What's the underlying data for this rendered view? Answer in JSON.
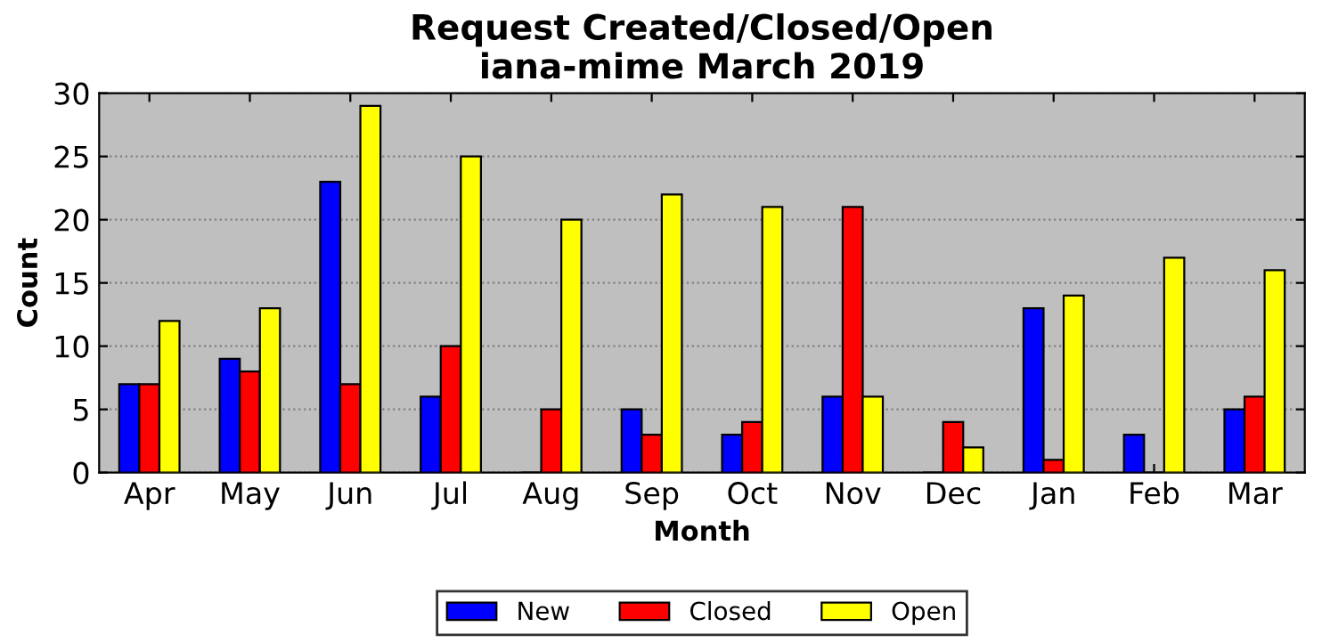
{
  "chart_data": {
    "type": "bar",
    "title": "Request Created/Closed/Open\niana-mime March 2019",
    "xlabel": "Month",
    "ylabel": "Count",
    "categories": [
      "Apr",
      "May",
      "Jun",
      "Jul",
      "Aug",
      "Sep",
      "Oct",
      "Nov",
      "Dec",
      "Jan",
      "Feb",
      "Mar"
    ],
    "series": [
      {
        "name": "New",
        "color": "#0000ff",
        "values": [
          7,
          9,
          23,
          6,
          0,
          5,
          3,
          6,
          0,
          13,
          3,
          5
        ]
      },
      {
        "name": "Closed",
        "color": "#ff0000",
        "values": [
          7,
          8,
          7,
          10,
          5,
          3,
          4,
          21,
          4,
          1,
          0,
          6
        ]
      },
      {
        "name": "Open",
        "color": "#ffff00",
        "values": [
          12,
          13,
          29,
          25,
          20,
          22,
          21,
          6,
          2,
          14,
          17,
          16
        ]
      }
    ],
    "ylim": [
      0,
      30
    ],
    "yticks": [
      0,
      5,
      10,
      15,
      20,
      25,
      30
    ],
    "grid": "y",
    "legend": "bottom"
  }
}
